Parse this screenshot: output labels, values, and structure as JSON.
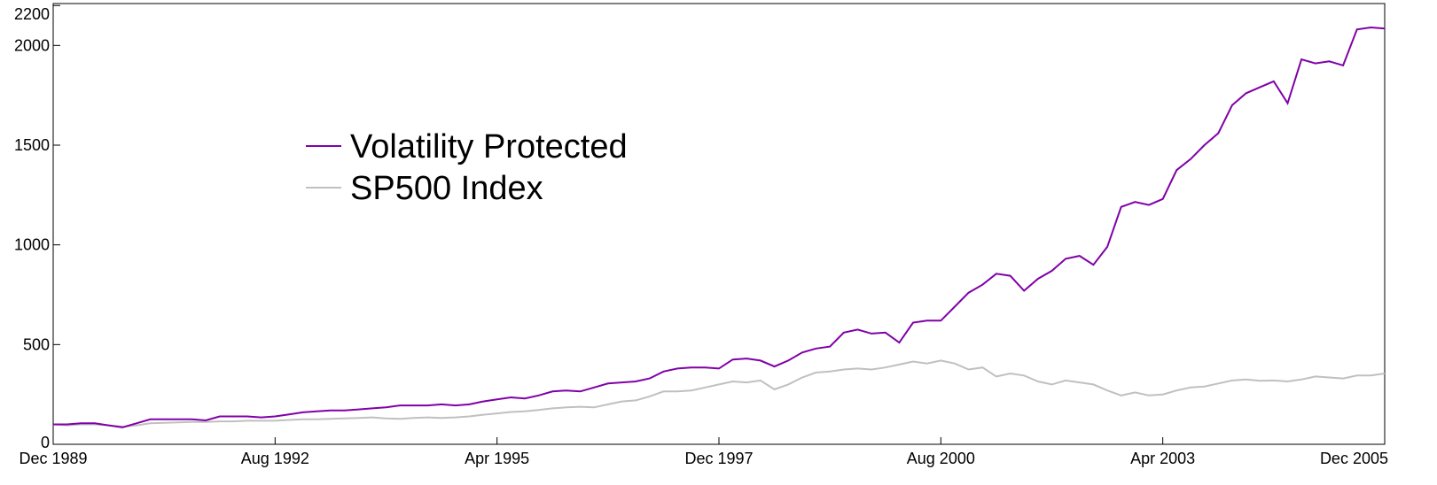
{
  "chart_data": {
    "type": "line",
    "x": [
      "Dec 1989",
      "Feb 1990",
      "Apr 1990",
      "Jun 1990",
      "Aug 1990",
      "Oct 1990",
      "Dec 1990",
      "Feb 1991",
      "Apr 1991",
      "Jun 1991",
      "Aug 1991",
      "Oct 1991",
      "Dec 1991",
      "Feb 1992",
      "Apr 1992",
      "Jun 1992",
      "Aug 1992",
      "Oct 1992",
      "Dec 1992",
      "Feb 1993",
      "Apr 1993",
      "Jun 1993",
      "Aug 1993",
      "Oct 1993",
      "Dec 1993",
      "Feb 1994",
      "Apr 1994",
      "Jun 1994",
      "Aug 1994",
      "Oct 1994",
      "Dec 1994",
      "Feb 1995",
      "Apr 1995",
      "Jun 1995",
      "Aug 1995",
      "Oct 1995",
      "Dec 1995",
      "Feb 1996",
      "Apr 1996",
      "Jun 1996",
      "Aug 1996",
      "Oct 1996",
      "Dec 1996",
      "Feb 1997",
      "Apr 1997",
      "Jun 1997",
      "Aug 1997",
      "Oct 1997",
      "Dec 1997",
      "Feb 1998",
      "Apr 1998",
      "Jun 1998",
      "Aug 1998",
      "Oct 1998",
      "Dec 1998",
      "Feb 1999",
      "Apr 1999",
      "Jun 1999",
      "Aug 1999",
      "Oct 1999",
      "Dec 1999",
      "Feb 2000",
      "Apr 2000",
      "Jun 2000",
      "Aug 2000",
      "Oct 2000",
      "Dec 2000",
      "Feb 2001",
      "Apr 2001",
      "Jun 2001",
      "Aug 2001",
      "Oct 2001",
      "Dec 2001",
      "Feb 2002",
      "Apr 2002",
      "Jun 2002",
      "Aug 2002",
      "Oct 2002",
      "Dec 2002",
      "Feb 2003",
      "Apr 2003",
      "Jun 2003",
      "Aug 2003",
      "Oct 2003",
      "Dec 2003",
      "Feb 2004",
      "Apr 2004",
      "Jun 2004",
      "Aug 2004",
      "Oct 2004",
      "Dec 2004",
      "Feb 2005",
      "Apr 2005",
      "Jun 2005",
      "Aug 2005",
      "Oct 2005",
      "Dec 2005"
    ],
    "series": [
      {
        "name": "Volatility Protected",
        "color": "#8000a8",
        "values": [
          100,
          100,
          105,
          105,
          95,
          85,
          105,
          125,
          125,
          125,
          125,
          120,
          140,
          140,
          140,
          135,
          140,
          150,
          160,
          165,
          170,
          170,
          175,
          180,
          185,
          195,
          195,
          195,
          200,
          195,
          200,
          215,
          225,
          235,
          230,
          245,
          265,
          270,
          265,
          285,
          305,
          310,
          315,
          330,
          365,
          380,
          385,
          385,
          380,
          425,
          430,
          420,
          390,
          420,
          460,
          480,
          490,
          560,
          575,
          555,
          560,
          510,
          610,
          620,
          620,
          690,
          760,
          800,
          855,
          845,
          770,
          830,
          870,
          930,
          945,
          900,
          990,
          1190,
          1215,
          1200,
          1230,
          1375,
          1430,
          1500,
          1560,
          1700,
          1760,
          1790,
          1820,
          1710,
          1930,
          1910,
          1920,
          1900,
          2080,
          2090,
          2085
        ]
      },
      {
        "name": "SP500 Index",
        "color": "#c0c0c0",
        "values": [
          100,
          95,
          100,
          100,
          95,
          88,
          95,
          105,
          108,
          110,
          112,
          112,
          115,
          115,
          118,
          118,
          118,
          122,
          125,
          125,
          128,
          130,
          132,
          135,
          130,
          128,
          132,
          135,
          132,
          135,
          140,
          148,
          155,
          162,
          165,
          172,
          180,
          185,
          188,
          185,
          200,
          215,
          220,
          240,
          265,
          265,
          270,
          285,
          300,
          315,
          310,
          320,
          275,
          300,
          335,
          360,
          365,
          375,
          380,
          375,
          385,
          400,
          415,
          405,
          420,
          405,
          375,
          385,
          340,
          355,
          345,
          315,
          300,
          320,
          310,
          300,
          270,
          245,
          260,
          245,
          250,
          270,
          285,
          290,
          305,
          320,
          325,
          318,
          320,
          315,
          325,
          340,
          335,
          330,
          345,
          345,
          355
        ]
      }
    ],
    "xticks": [
      "Dec 1989",
      "Aug 1992",
      "Apr 1995",
      "Dec 1997",
      "Aug 2000",
      "Apr 2003",
      "Dec 2005"
    ],
    "ylim": [
      0,
      2210
    ],
    "yticks": [
      0,
      500,
      1000,
      1500,
      2000,
      2200
    ],
    "grid": false,
    "legend": "upper left"
  }
}
